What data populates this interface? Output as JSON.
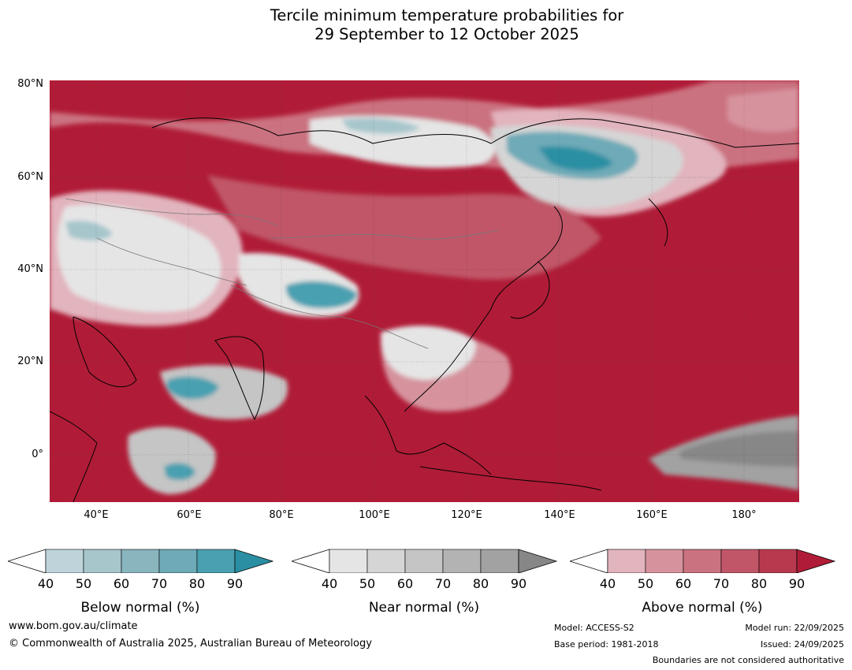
{
  "title": {
    "line1": "Tercile minimum temperature probabilities for",
    "line2": "29 September to 12 October 2025"
  },
  "map": {
    "lat_labels": [
      "80°N",
      "60°N",
      "40°N",
      "20°N",
      "0°"
    ],
    "lon_labels": [
      "40°E",
      "60°E",
      "80°E",
      "100°E",
      "120°E",
      "140°E",
      "160°E",
      "180°"
    ],
    "lat_range": [
      -10,
      82
    ],
    "lon_range": [
      30,
      192
    ]
  },
  "colorbars": [
    {
      "title": "Below normal (%)",
      "ticks": [
        "40",
        "50",
        "60",
        "70",
        "80",
        "90"
      ],
      "colors": [
        "#ffffff",
        "#bed4da",
        "#a6c6cc",
        "#89b5be",
        "#6eaab7",
        "#4aa0b0",
        "#2b8fa3"
      ]
    },
    {
      "title": "Near normal (%)",
      "ticks": [
        "40",
        "50",
        "60",
        "70",
        "80",
        "90"
      ],
      "colors": [
        "#ffffff",
        "#e5e5e5",
        "#d5d5d5",
        "#c5c5c5",
        "#b3b3b3",
        "#a2a2a2",
        "#878787"
      ]
    },
    {
      "title": "Above normal (%)",
      "ticks": [
        "40",
        "50",
        "60",
        "70",
        "80",
        "90"
      ],
      "colors": [
        "#ffffff",
        "#e2b4bd",
        "#d6939e",
        "#cb7280",
        "#c05668",
        "#b8394e",
        "#b01c37"
      ]
    }
  ],
  "colors": {
    "ocean_above": "#b01c37",
    "near_normal": "#878787"
  },
  "footer": {
    "website": "www.bom.gov.au/climate",
    "copyright": "© Commonwealth of Australia 2025, Australian Bureau of Meteorology",
    "model": "Model: ACCESS-S2",
    "base_period": "Base period: 1981-2018",
    "model_run": "Model run: 22/09/2025",
    "issued": "Issued: 24/09/2025",
    "boundaries": "Boundaries are not considered authoritative"
  }
}
